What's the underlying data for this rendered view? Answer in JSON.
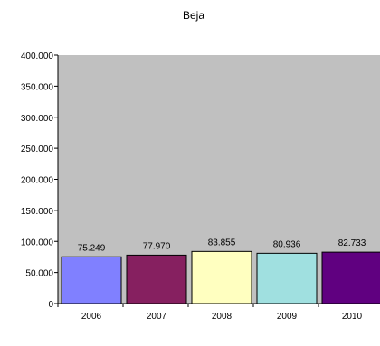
{
  "chart_data": {
    "type": "bar",
    "title": "Beja",
    "xlabel": "",
    "ylabel": "",
    "categories": [
      "2006",
      "2007",
      "2008",
      "2009",
      "2010"
    ],
    "values": [
      75249,
      77970,
      83855,
      80936,
      82733
    ],
    "value_labels": [
      "75.249",
      "77.970",
      "83.855",
      "80.936",
      "82.733"
    ],
    "bar_colors": [
      "#8080ff",
      "#862060",
      "#ffffc0",
      "#a0e0e0",
      "#600080"
    ],
    "ylim": [
      0,
      400000
    ],
    "yticks": [
      0,
      50000,
      100000,
      150000,
      200000,
      250000,
      300000,
      350000,
      400000
    ],
    "ytick_labels": [
      "0",
      "50.000",
      "100.000",
      "150.000",
      "200.000",
      "250.000",
      "300.000",
      "350.000",
      "400.000"
    ],
    "plot_background": "#c0c0c0",
    "grid": false,
    "legend": "none"
  }
}
